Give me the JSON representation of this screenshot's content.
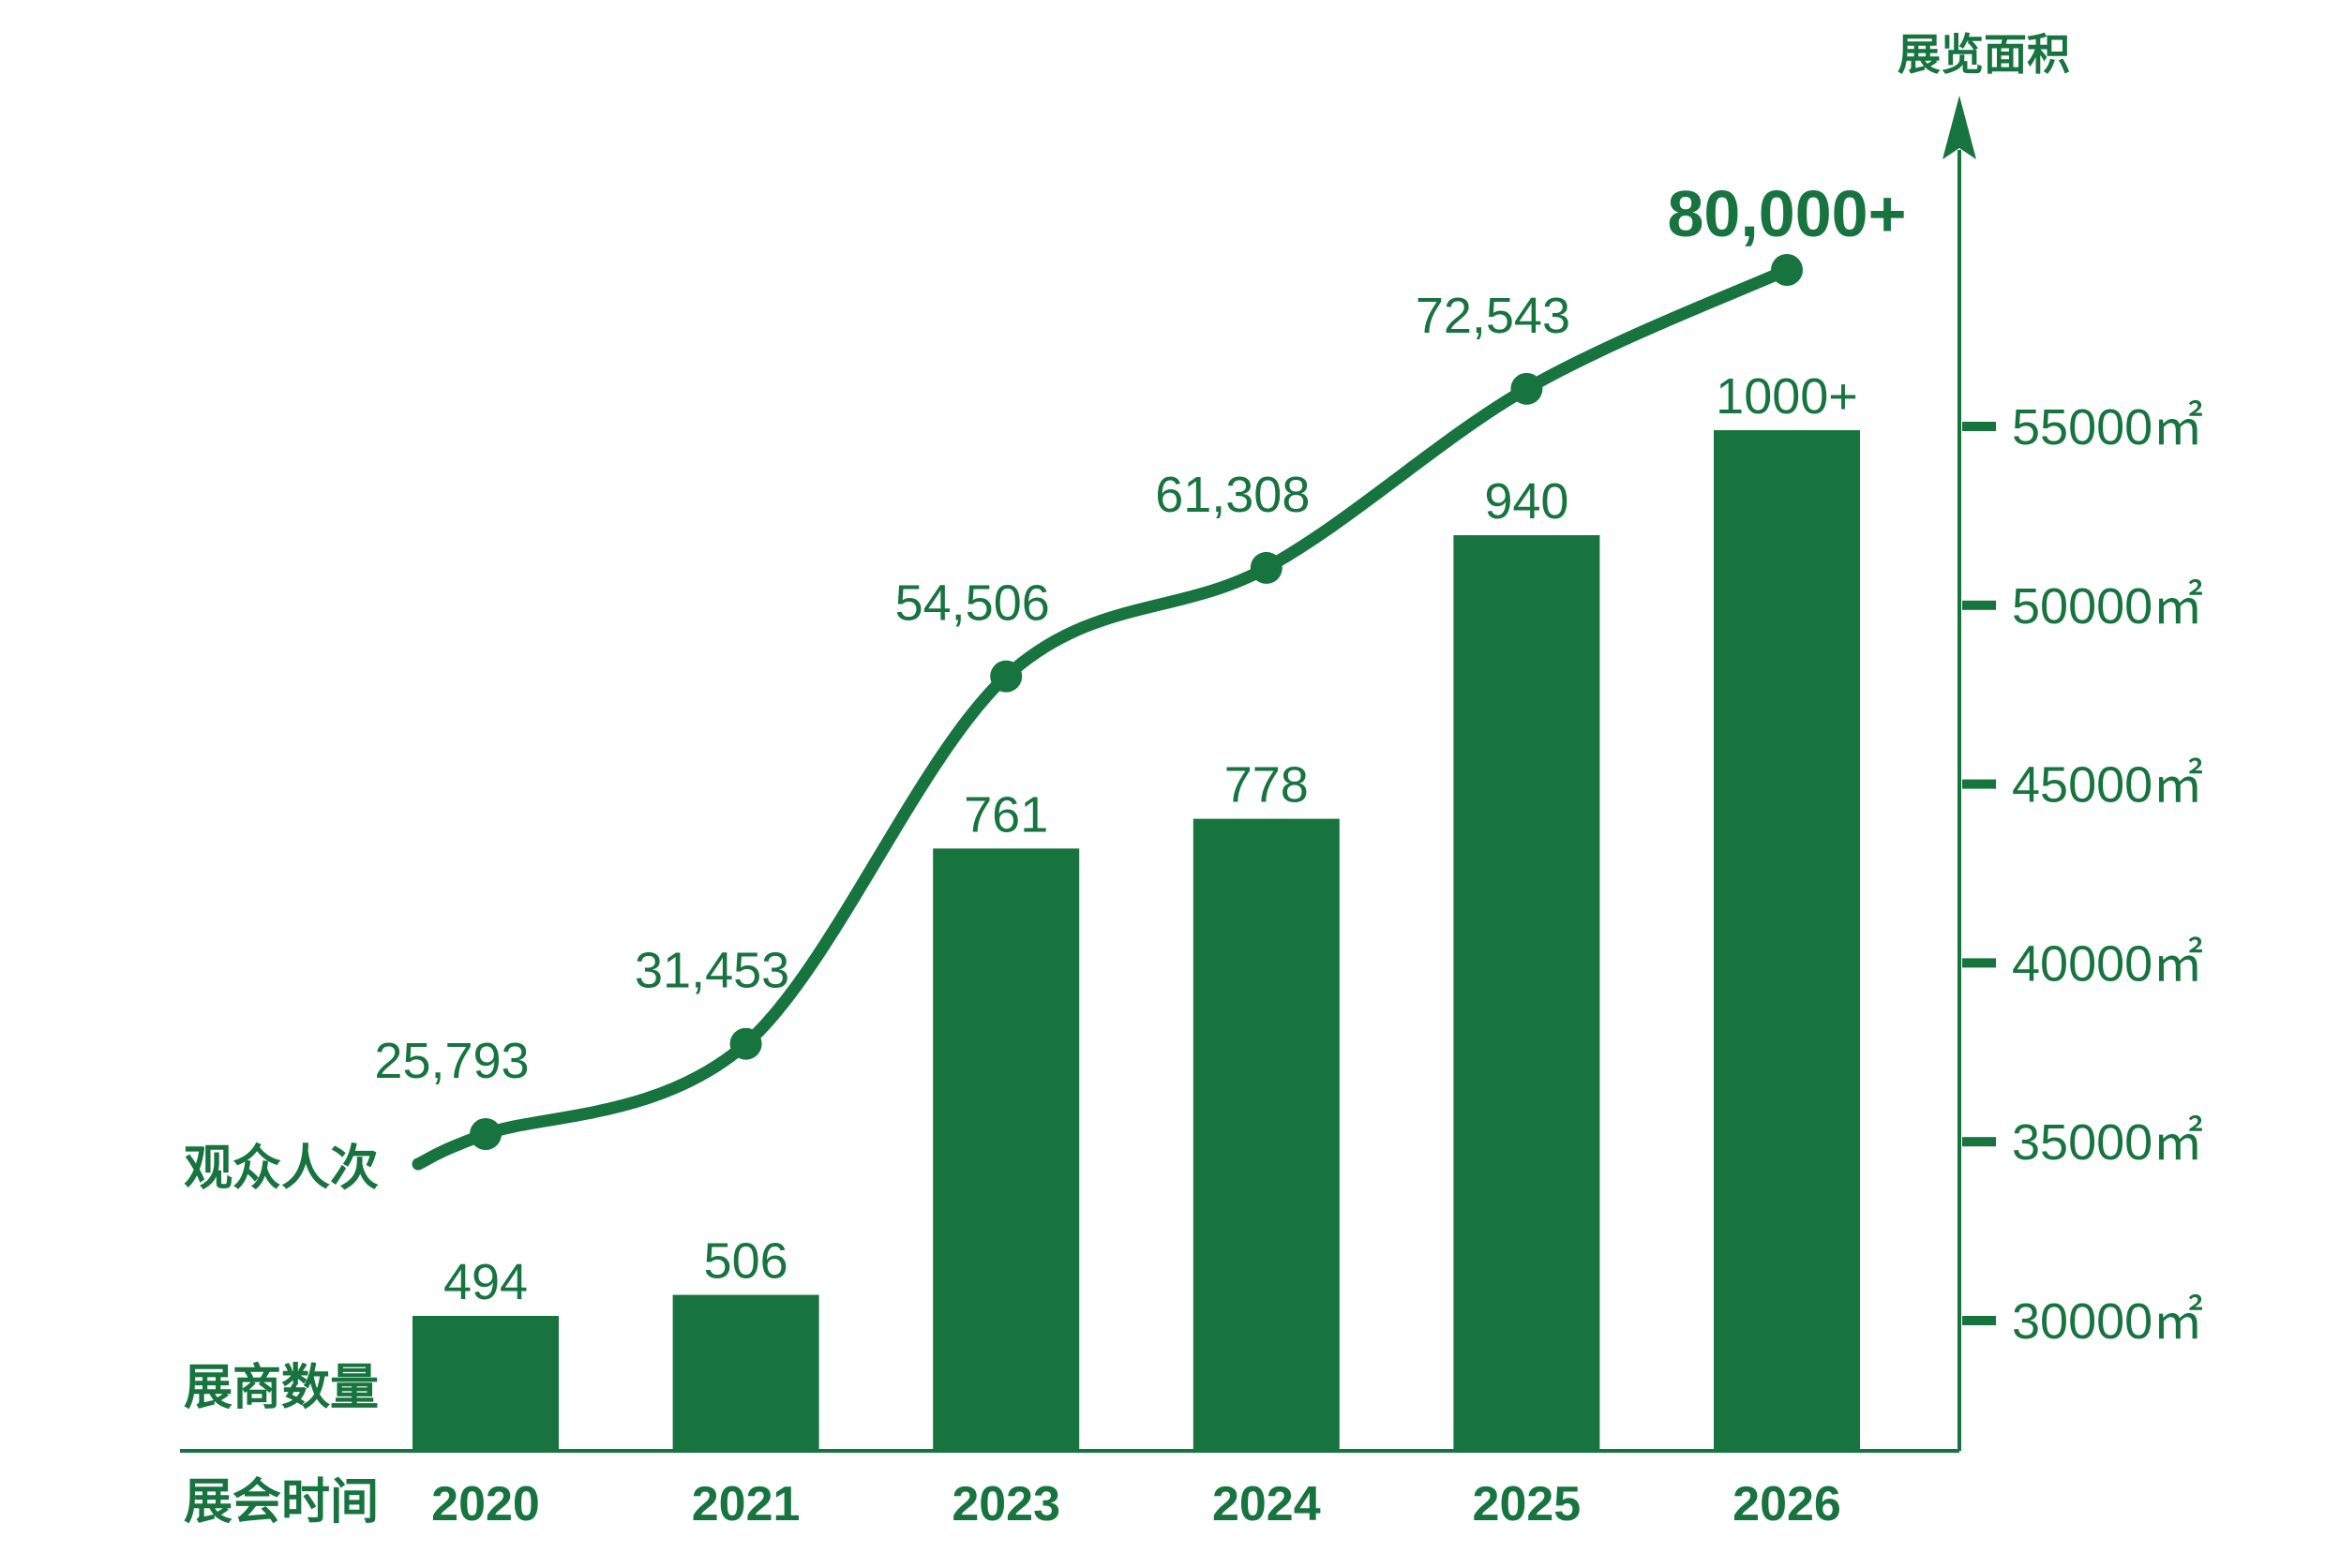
{
  "chart_data": {
    "type": "bar",
    "categories": [
      "2020",
      "2021",
      "2023",
      "2024",
      "2025",
      "2026"
    ],
    "series": [
      {
        "name": "展商数量",
        "type": "bar",
        "values": [
          494,
          506,
          761,
          778,
          940,
          1000
        ],
        "labels": [
          "494",
          "506",
          "761",
          "778",
          "940",
          "1000+"
        ]
      },
      {
        "name": "观众人次",
        "type": "line",
        "values": [
          25793,
          31453,
          54506,
          61308,
          72543,
          80000
        ],
        "labels": [
          "25,793",
          "31,453",
          "54,506",
          "61,308",
          "72,543",
          "80,000+"
        ]
      }
    ],
    "xlabel": "展会时间",
    "right_axis": {
      "title": "展览面积",
      "ticks": [
        30000,
        35000,
        40000,
        45000,
        50000,
        55000
      ],
      "tick_labels": [
        "30000㎡",
        "35000㎡",
        "40000㎡",
        "45000㎡",
        "50000㎡",
        "55000㎡"
      ]
    },
    "grid": false,
    "color": "#17743f"
  }
}
